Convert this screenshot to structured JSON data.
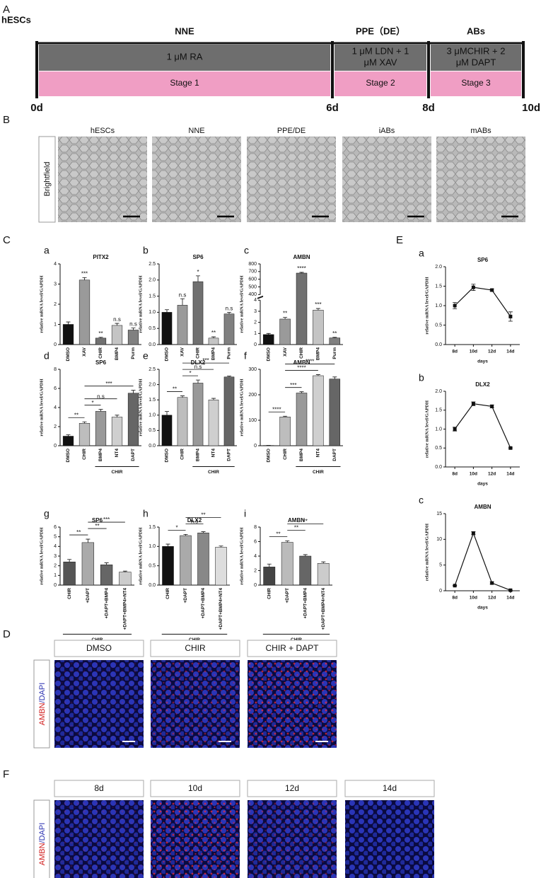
{
  "panel_a": {
    "letter": "A",
    "origin": "hESCs",
    "phases": [
      "NNE",
      "PPE（DE）",
      "ABs"
    ],
    "treatments": [
      [
        "1 μM RA"
      ],
      [
        "1 μM LDN + 1",
        "μM XAV"
      ],
      [
        "3 μMCHIR + 2",
        "μM DAPT"
      ]
    ],
    "stages": [
      "Stage 1",
      "Stage 2",
      "Stage 3"
    ],
    "times": [
      "0d",
      "6d",
      "8d",
      "10d"
    ]
  },
  "panel_b": {
    "letter": "B",
    "row_label": "Brightfield",
    "images": [
      "hESCs",
      "NNE",
      "PPE/DE",
      "iABs",
      "mABs"
    ]
  },
  "panel_c_letter": "C",
  "panel_e_letter": "E",
  "chart_data": [
    {
      "type": "bar",
      "label": "a",
      "title": "PITX2",
      "ylabel": "relative mRNA level/GAPDH",
      "categories": [
        "DMSO",
        "XAV",
        "CHIR",
        "BMP4",
        "Purm"
      ],
      "values": [
        1.0,
        3.2,
        0.32,
        0.95,
        0.72
      ],
      "errors": [
        0.12,
        0.12,
        0.04,
        0.1,
        0.1
      ],
      "colors": [
        "#111111",
        "#9a9a9a",
        "#707070",
        "#c4c4c4",
        "#808080"
      ],
      "ylim": [
        0,
        4
      ],
      "yticks": [
        0,
        1,
        2,
        3,
        4
      ],
      "value_annotations": [
        null,
        "***",
        "**",
        "n.s",
        "n.s"
      ]
    },
    {
      "type": "bar",
      "label": "b",
      "title": "SP6",
      "ylabel": "relative mRNA level/GAPDH",
      "categories": [
        "DMSO",
        "XAV",
        "CHIR",
        "BMP4",
        "Purm"
      ],
      "values": [
        1.0,
        1.22,
        1.95,
        0.2,
        0.95
      ],
      "errors": [
        0.08,
        0.2,
        0.18,
        0.04,
        0.05
      ],
      "colors": [
        "#111111",
        "#9a9a9a",
        "#707070",
        "#c4c4c4",
        "#808080"
      ],
      "ylim": [
        0,
        2.5
      ],
      "yticks": [
        {
          "value": 0,
          "label": "0.0"
        },
        0.5,
        {
          "value": 1,
          "label": "1.0"
        },
        1.5,
        {
          "value": 2,
          "label": "2.0"
        },
        2.5
      ],
      "value_annotations": [
        null,
        "n.s",
        "*",
        "**",
        "n.s"
      ]
    },
    {
      "type": "bar",
      "label": "c",
      "title": "AMBN",
      "ylabel": "relative mRNA level/GAPDH",
      "categories": [
        "DMSO",
        "XAV",
        "CHIR",
        "BMP4",
        "Purm"
      ],
      "values": [
        0.9,
        2.3,
        680,
        3.1,
        0.6
      ],
      "errors": [
        0.1,
        0.15,
        10,
        0.15,
        0.05
      ],
      "colors": [
        "#111111",
        "#9a9a9a",
        "#707070",
        "#c4c4c4",
        "#808080"
      ],
      "ylim": [
        0,
        800
      ],
      "ybreak": [
        4,
        400
      ],
      "yticks": [
        0,
        1,
        2,
        3,
        4,
        400,
        500,
        600,
        700,
        800
      ],
      "value_annotations": [
        null,
        "**",
        "****",
        "***",
        "**"
      ]
    },
    {
      "type": "bar",
      "label": "d",
      "title": "SP6",
      "ylabel": "relative mRNA level/GAPDH",
      "categories": [
        "DMSO",
        "CHIR",
        "BMP4",
        "NT4",
        "DAPT"
      ],
      "values": [
        1.0,
        2.35,
        3.6,
        3.0,
        5.5
      ],
      "errors": [
        0.15,
        0.15,
        0.2,
        0.2,
        0.3
      ],
      "colors": [
        "#111111",
        "#bdbdbd",
        "#999999",
        "#cfcfcf",
        "#666666"
      ],
      "ylim": [
        0,
        8
      ],
      "yticks": [
        0,
        2,
        4,
        6,
        8
      ],
      "brackets": [
        {
          "between": [
            "DMSO",
            "CHIR"
          ],
          "text": "**"
        },
        {
          "between": [
            "CHIR",
            "BMP4"
          ],
          "text": "*"
        },
        {
          "between": [
            "CHIR",
            "NT4"
          ],
          "text": "n.s"
        },
        {
          "between": [
            "CHIR",
            "DAPT"
          ],
          "text": "***"
        }
      ],
      "group_label": "CHIR",
      "group_span": [
        "BMP4",
        "DAPT"
      ]
    },
    {
      "type": "bar",
      "label": "e",
      "title": "DLX2",
      "ylabel": "relative mRNA level/GAPDH",
      "categories": [
        "DMSO",
        "CHIR",
        "BMP4",
        "NT4",
        "DAPT"
      ],
      "values": [
        1.0,
        1.58,
        2.05,
        1.5,
        2.25
      ],
      "errors": [
        0.12,
        0.05,
        0.1,
        0.05,
        0.03
      ],
      "colors": [
        "#111111",
        "#bdbdbd",
        "#999999",
        "#cfcfcf",
        "#666666"
      ],
      "ylim": [
        0,
        2.5
      ],
      "yticks": [
        {
          "value": 0,
          "label": "0.0"
        },
        0.5,
        {
          "value": 1,
          "label": "1.0"
        },
        1.5,
        {
          "value": 2,
          "label": "2.0"
        },
        2.5
      ],
      "brackets": [
        {
          "between": [
            "DMSO",
            "CHIR"
          ],
          "text": "**"
        },
        {
          "between": [
            "CHIR",
            "BMP4"
          ],
          "text": "*"
        },
        {
          "between": [
            "CHIR",
            "NT4"
          ],
          "text": "n.s"
        },
        {
          "between": [
            "CHIR",
            "DAPT"
          ],
          "text": "***"
        }
      ],
      "group_label": "CHIR",
      "group_span": [
        "BMP4",
        "DAPT"
      ]
    },
    {
      "type": "bar",
      "label": "f",
      "title": "AMBN",
      "ylabel": "relative mRNA level/GAPDH",
      "categories": [
        "DMSO",
        "CHIR",
        "BMP4",
        "NT4",
        "DAPT"
      ],
      "values": [
        1,
        113,
        207,
        275,
        262
      ],
      "errors": [
        0.2,
        3,
        5,
        4,
        8
      ],
      "colors": [
        "#111111",
        "#bdbdbd",
        "#999999",
        "#cfcfcf",
        "#666666"
      ],
      "ylim": [
        0,
        300
      ],
      "yticks": [
        0,
        100,
        200,
        300
      ],
      "brackets": [
        {
          "between": [
            "DMSO",
            "CHIR"
          ],
          "text": "****"
        },
        {
          "between": [
            "CHIR",
            "BMP4"
          ],
          "text": "***"
        },
        {
          "between": [
            "CHIR",
            "NT4"
          ],
          "text": "****"
        },
        {
          "between": [
            "CHIR",
            "DAPT"
          ],
          "text": "****"
        }
      ],
      "group_label": "CHIR",
      "group_span": [
        "BMP4",
        "DAPT"
      ]
    },
    {
      "type": "bar",
      "label": "g",
      "title": "SP6",
      "ylabel": "relative mRNA level/GAPDH",
      "categories": [
        "CHIR",
        "+DAPT",
        "+DAPT+BMP4",
        "+DAPT+BMP4+NT4"
      ],
      "values": [
        2.4,
        4.4,
        2.1,
        1.35
      ],
      "errors": [
        0.25,
        0.35,
        0.2,
        0.1
      ],
      "colors": [
        "#555555",
        "#aaaaaa",
        "#666666",
        "#cccccc"
      ],
      "ylim": [
        0,
        6
      ],
      "yticks": [
        0,
        1,
        2,
        3,
        4,
        5,
        6
      ],
      "brackets": [
        {
          "between": [
            "CHIR",
            "+DAPT"
          ],
          "text": "**"
        },
        {
          "between": [
            "+DAPT",
            "+DAPT+BMP4"
          ],
          "text": "**"
        },
        {
          "between": [
            "+DAPT",
            "+DAPT+BMP4+NT4"
          ],
          "text": "***"
        }
      ],
      "group_label": "CHIR",
      "group_span": [
        "CHIR",
        "+DAPT+BMP4+NT4"
      ]
    },
    {
      "type": "bar",
      "label": "h",
      "title": "DLX2",
      "ylabel": "relative mRNA level/GAPDH",
      "categories": [
        "CHIR",
        "+DAPT",
        "+DAPT+BMP4",
        "+DAPT+BMP4+NT4"
      ],
      "values": [
        1.0,
        1.28,
        1.35,
        0.98
      ],
      "errors": [
        0.06,
        0.03,
        0.03,
        0.03
      ],
      "colors": [
        "#111111",
        "#aaaaaa",
        "#888888",
        "#dddddd"
      ],
      "ylim": [
        0,
        1.5
      ],
      "yticks": [
        {
          "value": 0,
          "label": "0.0"
        },
        0.5,
        {
          "value": 1,
          "label": "1.0"
        },
        1.5
      ],
      "brackets": [
        {
          "between": [
            "CHIR",
            "+DAPT"
          ],
          "text": "*"
        },
        {
          "between": [
            "+DAPT",
            "+DAPT+BMP4"
          ],
          "text": "n.s"
        },
        {
          "between": [
            "+DAPT",
            "+DAPT+BMP4+NT4"
          ],
          "text": "**"
        }
      ],
      "group_label": "CHIR",
      "group_span": [
        "CHIR",
        "+DAPT+BMP4+NT4"
      ]
    },
    {
      "type": "bar",
      "label": "i",
      "title": "AMBN",
      "ylabel": "relative mRNA level/GAPDH",
      "categories": [
        "CHIR",
        "+DAPT",
        "+DAPT+BMP4",
        "+DAPT+BMP4+NT4"
      ],
      "values": [
        2.5,
        5.9,
        4.0,
        3.0
      ],
      "errors": [
        0.4,
        0.2,
        0.2,
        0.2
      ],
      "colors": [
        "#444444",
        "#bbbbbb",
        "#666666",
        "#cccccc"
      ],
      "ylim": [
        0,
        8
      ],
      "yticks": [
        0,
        2,
        4,
        6,
        8
      ],
      "brackets": [
        {
          "between": [
            "CHIR",
            "+DAPT"
          ],
          "text": "**"
        },
        {
          "between": [
            "+DAPT",
            "+DAPT+BMP4"
          ],
          "text": "**"
        },
        {
          "between": [
            "+DAPT",
            "+DAPT+BMP4+NT4"
          ],
          "text": "**"
        }
      ],
      "group_label": "CHIR",
      "group_span": [
        "CHIR",
        "+DAPT+BMP4+NT4"
      ]
    },
    {
      "type": "line",
      "label": "a",
      "title": "SP6",
      "ylabel": "relative mRNA level/GAPDH",
      "xlabel": "days",
      "categories": [
        "8d",
        "10d",
        "12d",
        "14d"
      ],
      "values": [
        1.0,
        1.47,
        1.4,
        0.72
      ],
      "errors": [
        0.08,
        0.08,
        0.03,
        0.12
      ],
      "color": "#111111",
      "ylim": [
        0,
        2
      ],
      "yticks": [
        {
          "value": 0,
          "label": "0.0"
        },
        0.5,
        {
          "value": 1,
          "label": "1.0"
        },
        1.5,
        {
          "value": 2,
          "label": "2.0"
        }
      ]
    },
    {
      "type": "line",
      "label": "b",
      "title": "DLX2",
      "ylabel": "relative mRNA level/GAPDH",
      "xlabel": "days",
      "categories": [
        "8d",
        "10d",
        "12d",
        "14d"
      ],
      "values": [
        1.0,
        1.67,
        1.6,
        0.5
      ],
      "errors": [
        0.05,
        0.05,
        0.04,
        0.02
      ],
      "color": "#111111",
      "ylim": [
        0,
        2
      ],
      "yticks": [
        {
          "value": 0,
          "label": "0.0"
        },
        0.5,
        {
          "value": 1,
          "label": "1.0"
        },
        1.5,
        {
          "value": 2,
          "label": "2.0"
        }
      ]
    },
    {
      "type": "line",
      "label": "c",
      "title": "AMBN",
      "ylabel": "relative mRNA level/GAPDH",
      "xlabel": "days",
      "categories": [
        "8d",
        "10d",
        "12d",
        "14d"
      ],
      "values": [
        1.0,
        11.2,
        1.5,
        0.1
      ],
      "errors": [
        0.05,
        0.3,
        0.2,
        0.02
      ],
      "color": "#111111",
      "ylim": [
        0,
        15
      ],
      "yticks": [
        0,
        5,
        10,
        15
      ]
    }
  ],
  "panel_d": {
    "letter": "D",
    "row_label": [
      "AMBN",
      "/DAPI"
    ],
    "images": [
      "DMSO",
      "CHIR",
      "CHIR + DAPT"
    ]
  },
  "panel_f": {
    "letter": "F",
    "row_label": [
      "AMBN",
      "/DAPI"
    ],
    "images": [
      "8d",
      "10d",
      "12d",
      "14d"
    ]
  }
}
